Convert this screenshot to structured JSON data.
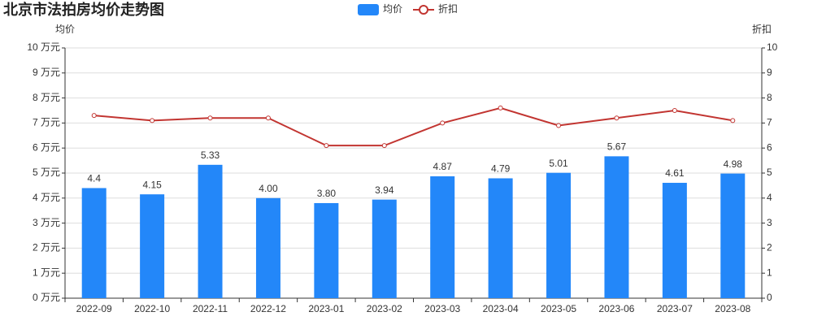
{
  "chart_data": {
    "type": "bar",
    "title": "北京市法拍房均价走势图",
    "y_label": "均价",
    "y2_label": "折扣",
    "categories": [
      "2022-09",
      "2022-10",
      "2022-11",
      "2022-12",
      "2023-01",
      "2023-02",
      "2023-03",
      "2023-04",
      "2023-05",
      "2023-06",
      "2023-07",
      "2023-08"
    ],
    "series": [
      {
        "name": "均价",
        "type": "bar",
        "color": "#2387f9",
        "axis": "y",
        "values": [
          4.4,
          4.15,
          5.33,
          4.0,
          3.8,
          3.94,
          4.87,
          4.79,
          5.01,
          5.67,
          4.61,
          4.98
        ],
        "value_labels": [
          "4.4",
          "4.15",
          "5.33",
          "4.00",
          "3.80",
          "3.94",
          "4.87",
          "4.79",
          "5.01",
          "5.67",
          "4.61",
          "4.98"
        ]
      },
      {
        "name": "折扣",
        "type": "line",
        "color": "#c23531",
        "axis": "y2",
        "values": [
          7.3,
          7.1,
          7.2,
          7.2,
          6.1,
          6.1,
          7.0,
          7.6,
          6.9,
          7.2,
          7.5,
          7.1
        ]
      }
    ],
    "ylim": [
      0,
      10
    ],
    "yticks": [
      {
        "value": 0,
        "label": "0 万元"
      },
      {
        "value": 1,
        "label": "1 万元"
      },
      {
        "value": 2,
        "label": "2 万元"
      },
      {
        "value": 3,
        "label": "3 万元"
      },
      {
        "value": 4,
        "label": "4 万元"
      },
      {
        "value": 5,
        "label": "5 万元"
      },
      {
        "value": 6,
        "label": "6 万元"
      },
      {
        "value": 7,
        "label": "7 万元"
      },
      {
        "value": 8,
        "label": "8 万元"
      },
      {
        "value": 9,
        "label": "9 万元"
      },
      {
        "value": 10,
        "label": "10 万元"
      }
    ],
    "y2lim": [
      0,
      10
    ],
    "y2ticks": [
      0,
      1,
      2,
      3,
      4,
      5,
      6,
      7,
      8,
      9,
      10
    ],
    "grid": true,
    "legend": "top"
  }
}
